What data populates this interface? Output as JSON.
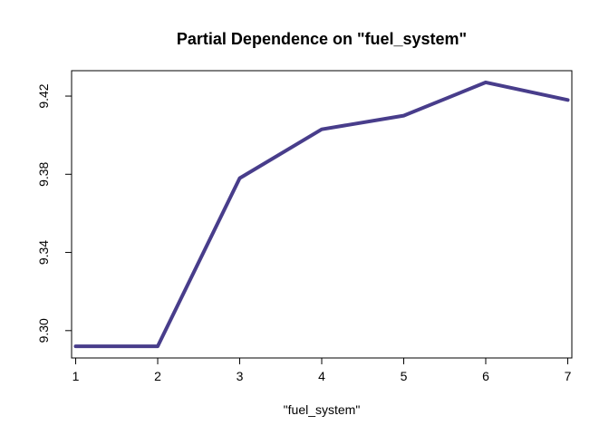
{
  "chart_data": {
    "type": "line",
    "title": "Partial Dependence on \"fuel_system\"",
    "xlabel": "\"fuel_system\"",
    "ylabel": "",
    "x": [
      1,
      2,
      3,
      4,
      5,
      6,
      7
    ],
    "series": [
      {
        "values": [
          9.292,
          9.292,
          9.378,
          9.403,
          9.41,
          9.427,
          9.418
        ]
      }
    ],
    "xlim": [
      0.95,
      7.05
    ],
    "ylim": [
      9.286,
      9.433
    ],
    "xticks": [
      "1",
      "2",
      "3",
      "4",
      "5",
      "6",
      "7"
    ],
    "yticks": [
      "9.30",
      "9.34",
      "9.38",
      "9.42"
    ],
    "line_color": "#483D8B",
    "grid": false,
    "legend": "none"
  }
}
